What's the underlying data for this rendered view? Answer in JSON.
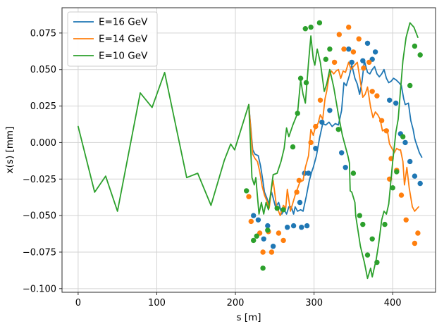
{
  "chart_data": {
    "type": "line+scatter",
    "title": "",
    "xlabel": "s [m]",
    "ylabel": "x(s) [mm]",
    "xlim": [
      -20.5,
      454.5
    ],
    "ylim": [
      -0.1025,
      0.0923
    ],
    "grid": true,
    "grid_color": "#d3d3d3",
    "background_color": "#ffffff",
    "spine_color": "#2b2b2b",
    "legend_position": "upper-left",
    "x_ticks": [
      {
        "value": 0,
        "label": "0"
      },
      {
        "value": 100,
        "label": "100"
      },
      {
        "value": 200,
        "label": "200"
      },
      {
        "value": 300,
        "label": "300"
      },
      {
        "value": 400,
        "label": "400"
      }
    ],
    "y_ticks": [
      {
        "value": 0.075,
        "label": "0.075"
      },
      {
        "value": 0.05,
        "label": "0.050"
      },
      {
        "value": 0.025,
        "label": "0.025"
      },
      {
        "value": 0.0,
        "label": "0.000"
      },
      {
        "value": -0.025,
        "label": "−0.025"
      },
      {
        "value": -0.05,
        "label": "−0.050"
      },
      {
        "value": -0.075,
        "label": "−0.075"
      },
      {
        "value": -0.1,
        "label": "−0.100"
      }
    ],
    "series": [
      {
        "name": "E=16 GeV",
        "color": "#1f77b4",
        "line_points": [
          [
            217,
            0.026
          ],
          [
            222,
            -0.005
          ],
          [
            225,
            -0.008
          ],
          [
            229,
            -0.009
          ],
          [
            232,
            -0.016
          ],
          [
            234,
            -0.023
          ],
          [
            237,
            -0.034
          ],
          [
            240,
            -0.038
          ],
          [
            242,
            -0.042
          ],
          [
            246,
            -0.034
          ],
          [
            251,
            -0.044
          ],
          [
            255,
            -0.041
          ],
          [
            259,
            -0.049
          ],
          [
            262,
            -0.046
          ],
          [
            265,
            -0.049
          ],
          [
            268,
            -0.044
          ],
          [
            271,
            -0.044
          ],
          [
            274,
            -0.049
          ],
          [
            276,
            -0.044
          ],
          [
            279,
            -0.047
          ],
          [
            283,
            -0.046
          ],
          [
            286,
            -0.047
          ],
          [
            290,
            -0.037
          ],
          [
            294,
            -0.026
          ],
          [
            297,
            -0.02
          ],
          [
            299,
            -0.017
          ],
          [
            303,
            -0.009
          ],
          [
            307,
            0.003
          ],
          [
            311,
            0.013
          ],
          [
            315,
            0.012
          ],
          [
            319,
            0.014
          ],
          [
            323,
            0.011
          ],
          [
            327,
            0.013
          ],
          [
            331,
            0.012
          ],
          [
            335,
            0.022
          ],
          [
            338,
            0.041
          ],
          [
            341,
            0.039
          ],
          [
            345,
            0.046
          ],
          [
            348,
            0.053
          ],
          [
            352,
            0.044
          ],
          [
            355,
            0.04
          ],
          [
            358,
            0.033
          ],
          [
            361,
            0.042
          ],
          [
            364,
            0.056
          ],
          [
            368,
            0.048
          ],
          [
            371,
            0.047
          ],
          [
            374,
            0.05
          ],
          [
            377,
            0.052
          ],
          [
            380,
            0.047
          ],
          [
            383,
            0.045
          ],
          [
            386,
            0.047
          ],
          [
            389,
            0.05
          ],
          [
            392,
            0.044
          ],
          [
            395,
            0.041
          ],
          [
            398,
            0.042
          ],
          [
            401,
            0.044
          ],
          [
            404,
            0.043
          ],
          [
            408,
            0.041
          ],
          [
            411,
            0.039
          ],
          [
            414,
            0.03
          ],
          [
            416,
            0.026
          ],
          [
            420,
            0.027
          ],
          [
            423,
            0.015
          ],
          [
            426,
            0.009
          ],
          [
            428,
            0.003
          ],
          [
            429,
            0.001
          ],
          [
            434,
            -0.007
          ],
          [
            437,
            -0.01
          ]
        ],
        "scatter_points": [
          [
            223,
            -0.05
          ],
          [
            229,
            -0.053
          ],
          [
            236,
            -0.066
          ],
          [
            241,
            -0.057
          ],
          [
            248,
            -0.071
          ],
          [
            266,
            -0.058
          ],
          [
            274,
            -0.057
          ],
          [
            282,
            -0.041
          ],
          [
            284,
            -0.058
          ],
          [
            288,
            -0.021
          ],
          [
            291,
            -0.057
          ],
          [
            293,
            -0.021
          ],
          [
            302,
            -0.004
          ],
          [
            310,
            0.014
          ],
          [
            320,
            0.022
          ],
          [
            335,
            -0.007
          ],
          [
            340,
            -0.017
          ],
          [
            344,
            0.064
          ],
          [
            348,
            0.055
          ],
          [
            362,
            0.056
          ],
          [
            368,
            0.068
          ],
          [
            374,
            0.057
          ],
          [
            378,
            0.062
          ],
          [
            396,
            0.029
          ],
          [
            404,
            0.027
          ],
          [
            410,
            0.006
          ],
          [
            416,
            0.0
          ],
          [
            422,
            -0.013
          ],
          [
            428,
            -0.023
          ],
          [
            435,
            -0.028
          ]
        ]
      },
      {
        "name": "E=14 GeV",
        "color": "#ff7f0e",
        "line_points": [
          [
            217,
            0.026
          ],
          [
            222,
            -0.008
          ],
          [
            225,
            -0.011
          ],
          [
            228,
            -0.013
          ],
          [
            231,
            -0.02
          ],
          [
            234,
            -0.03
          ],
          [
            237,
            -0.036
          ],
          [
            240,
            -0.04
          ],
          [
            243,
            -0.045
          ],
          [
            246,
            -0.031
          ],
          [
            248,
            -0.026
          ],
          [
            252,
            -0.043
          ],
          [
            257,
            -0.05
          ],
          [
            261,
            -0.043
          ],
          [
            264,
            -0.045
          ],
          [
            266,
            -0.032
          ],
          [
            270,
            -0.047
          ],
          [
            276,
            -0.036
          ],
          [
            282,
            -0.027
          ],
          [
            286,
            -0.026
          ],
          [
            289,
            -0.017
          ],
          [
            293,
            -0.009
          ],
          [
            296,
            0.009
          ],
          [
            299,
            0.005
          ],
          [
            302,
            0.011
          ],
          [
            305,
            0.013
          ],
          [
            308,
            0.019
          ],
          [
            311,
            0.016
          ],
          [
            314,
            0.03
          ],
          [
            316,
            0.035
          ],
          [
            319,
            0.045
          ],
          [
            322,
            0.049
          ],
          [
            325,
            0.047
          ],
          [
            328,
            0.049
          ],
          [
            331,
            0.05
          ],
          [
            334,
            0.044
          ],
          [
            337,
            0.049
          ],
          [
            340,
            0.048
          ],
          [
            344,
            0.055
          ],
          [
            347,
            0.05
          ],
          [
            350,
            0.052
          ],
          [
            355,
            0.055
          ],
          [
            358,
            0.045
          ],
          [
            362,
            0.031
          ],
          [
            365,
            0.033
          ],
          [
            368,
            0.038
          ],
          [
            372,
            0.024
          ],
          [
            375,
            0.017
          ],
          [
            378,
            0.021
          ],
          [
            381,
            0.019
          ],
          [
            384,
            0.016
          ],
          [
            387,
            0.008
          ],
          [
            390,
            0.009
          ],
          [
            393,
            0.009
          ],
          [
            396,
            -0.001
          ],
          [
            399,
            -0.004
          ],
          [
            402,
            -0.007
          ],
          [
            405,
            -0.004
          ],
          [
            408,
            -0.005
          ],
          [
            410,
            -0.005
          ],
          [
            413,
            -0.013
          ],
          [
            415,
            -0.029
          ],
          [
            418,
            -0.017
          ],
          [
            421,
            -0.031
          ],
          [
            425,
            -0.044
          ],
          [
            428,
            -0.047
          ],
          [
            433,
            -0.044
          ]
        ],
        "scatter_points": [
          [
            217,
            -0.037
          ],
          [
            220,
            -0.054
          ],
          [
            231,
            -0.062
          ],
          [
            235,
            -0.075
          ],
          [
            242,
            -0.061
          ],
          [
            246,
            -0.075
          ],
          [
            255,
            -0.062
          ],
          [
            261,
            -0.067
          ],
          [
            278,
            -0.034
          ],
          [
            281,
            -0.026
          ],
          [
            296,
            0.0
          ],
          [
            302,
            0.011
          ],
          [
            308,
            0.029
          ],
          [
            326,
            0.055
          ],
          [
            332,
            0.074
          ],
          [
            338,
            0.064
          ],
          [
            344,
            0.079
          ],
          [
            350,
            0.062
          ],
          [
            357,
            0.071
          ],
          [
            363,
            0.051
          ],
          [
            370,
            0.055
          ],
          [
            374,
            0.035
          ],
          [
            380,
            0.032
          ],
          [
            386,
            0.015
          ],
          [
            392,
            0.008
          ],
          [
            396,
            -0.025
          ],
          [
            398,
            -0.011
          ],
          [
            405,
            -0.019
          ],
          [
            411,
            -0.036
          ],
          [
            417,
            -0.053
          ],
          [
            428,
            -0.069
          ],
          [
            432,
            -0.062
          ]
        ]
      },
      {
        "name": "E=10 GeV",
        "color": "#2ca02c",
        "line_points": [
          [
            0,
            0.011
          ],
          [
            21,
            -0.034
          ],
          [
            35,
            -0.023
          ],
          [
            50,
            -0.047
          ],
          [
            79,
            0.034
          ],
          [
            94,
            0.024
          ],
          [
            110,
            0.048
          ],
          [
            138,
            -0.024
          ],
          [
            152,
            -0.021
          ],
          [
            169,
            -0.043
          ],
          [
            186,
            -0.012
          ],
          [
            194,
            -0.001
          ],
          [
            199,
            -0.005
          ],
          [
            217,
            0.026
          ],
          [
            221,
            -0.024
          ],
          [
            224,
            -0.029
          ],
          [
            226,
            -0.024
          ],
          [
            230,
            -0.049
          ],
          [
            233,
            -0.041
          ],
          [
            236,
            -0.049
          ],
          [
            239,
            -0.041
          ],
          [
            242,
            -0.046
          ],
          [
            248,
            -0.022
          ],
          [
            253,
            -0.021
          ],
          [
            258,
            -0.013
          ],
          [
            262,
            -0.004
          ],
          [
            265,
            0.01
          ],
          [
            268,
            0.004
          ],
          [
            273,
            0.012
          ],
          [
            279,
            0.02
          ],
          [
            283,
            0.043
          ],
          [
            286,
            0.033
          ],
          [
            289,
            0.027
          ],
          [
            293,
            0.055
          ],
          [
            296,
            0.073
          ],
          [
            299,
            0.057
          ],
          [
            301,
            0.053
          ],
          [
            304,
            0.064
          ],
          [
            308,
            0.055
          ],
          [
            313,
            0.035
          ],
          [
            316,
            0.04
          ],
          [
            320,
            0.05
          ],
          [
            325,
            0.038
          ],
          [
            331,
            0.019
          ],
          [
            336,
            0.005
          ],
          [
            343,
            -0.009
          ],
          [
            345,
            -0.014
          ],
          [
            346,
            -0.033
          ],
          [
            348,
            -0.034
          ],
          [
            352,
            -0.041
          ],
          [
            353,
            -0.05
          ],
          [
            359,
            -0.071
          ],
          [
            364,
            -0.082
          ],
          [
            368,
            -0.093
          ],
          [
            372,
            -0.086
          ],
          [
            374,
            -0.092
          ],
          [
            379,
            -0.08
          ],
          [
            382,
            -0.07
          ],
          [
            386,
            -0.053
          ],
          [
            389,
            -0.047
          ],
          [
            392,
            -0.049
          ],
          [
            395,
            -0.042
          ],
          [
            400,
            -0.013
          ],
          [
            404,
            0.007
          ],
          [
            407,
            0.016
          ],
          [
            410,
            0.036
          ],
          [
            413,
            0.056
          ],
          [
            417,
            0.072
          ],
          [
            422,
            0.082
          ],
          [
            427,
            0.079
          ],
          [
            432,
            0.072
          ]
        ],
        "scatter_points": [
          [
            214,
            -0.033
          ],
          [
            223,
            -0.067
          ],
          [
            227,
            -0.064
          ],
          [
            235,
            -0.086
          ],
          [
            241,
            -0.06
          ],
          [
            253,
            -0.045
          ],
          [
            261,
            -0.046
          ],
          [
            273,
            -0.003
          ],
          [
            279,
            0.02
          ],
          [
            283,
            0.044
          ],
          [
            289,
            0.078
          ],
          [
            290,
            0.041
          ],
          [
            296,
            0.079
          ],
          [
            307,
            0.082
          ],
          [
            315,
            0.057
          ],
          [
            320,
            0.064
          ],
          [
            331,
            0.009
          ],
          [
            350,
            -0.021
          ],
          [
            358,
            -0.05
          ],
          [
            362,
            -0.056
          ],
          [
            368,
            -0.077
          ],
          [
            374,
            -0.066
          ],
          [
            380,
            -0.082
          ],
          [
            390,
            -0.056
          ],
          [
            400,
            -0.031
          ],
          [
            405,
            -0.02
          ],
          [
            413,
            0.004
          ],
          [
            422,
            0.039
          ],
          [
            428,
            0.066
          ],
          [
            435,
            0.06
          ]
        ]
      }
    ]
  }
}
